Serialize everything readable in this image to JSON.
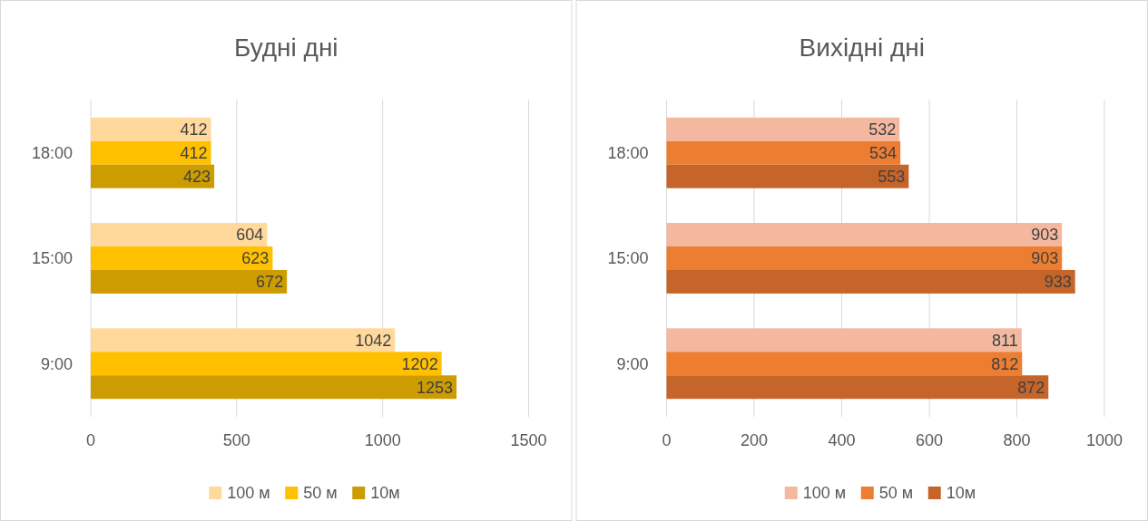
{
  "chart_data": [
    {
      "type": "bar",
      "title": "Будні дні",
      "orientation": "horizontal",
      "categories": [
        "18:00",
        "15:00",
        "9:00"
      ],
      "series": [
        {
          "name": "100 м",
          "color": "#ffd89b",
          "values": [
            412,
            604,
            1042
          ]
        },
        {
          "name": "50 м",
          "color": "#ffc000",
          "values": [
            412,
            623,
            1202
          ]
        },
        {
          "name": "10м",
          "color": "#cc9c00",
          "values": [
            423,
            672,
            1253
          ]
        }
      ],
      "xlim": [
        0,
        1500
      ],
      "xticks": [
        0,
        500,
        1000,
        1500
      ],
      "grid": "x",
      "legend": "bottom",
      "data_labels": true
    },
    {
      "type": "bar",
      "title": "Вихідні дні",
      "orientation": "horizontal",
      "categories": [
        "18:00",
        "15:00",
        "9:00"
      ],
      "series": [
        {
          "name": "100 м",
          "color": "#f4b8a0",
          "values": [
            532,
            903,
            811
          ]
        },
        {
          "name": "50 м",
          "color": "#ed7d31",
          "values": [
            534,
            903,
            812
          ]
        },
        {
          "name": "10м",
          "color": "#c5652a",
          "values": [
            553,
            933,
            872
          ]
        }
      ],
      "xlim": [
        0,
        1000
      ],
      "xticks": [
        0,
        200,
        400,
        600,
        800,
        1000
      ],
      "grid": "x",
      "legend": "bottom",
      "data_labels": true
    }
  ]
}
